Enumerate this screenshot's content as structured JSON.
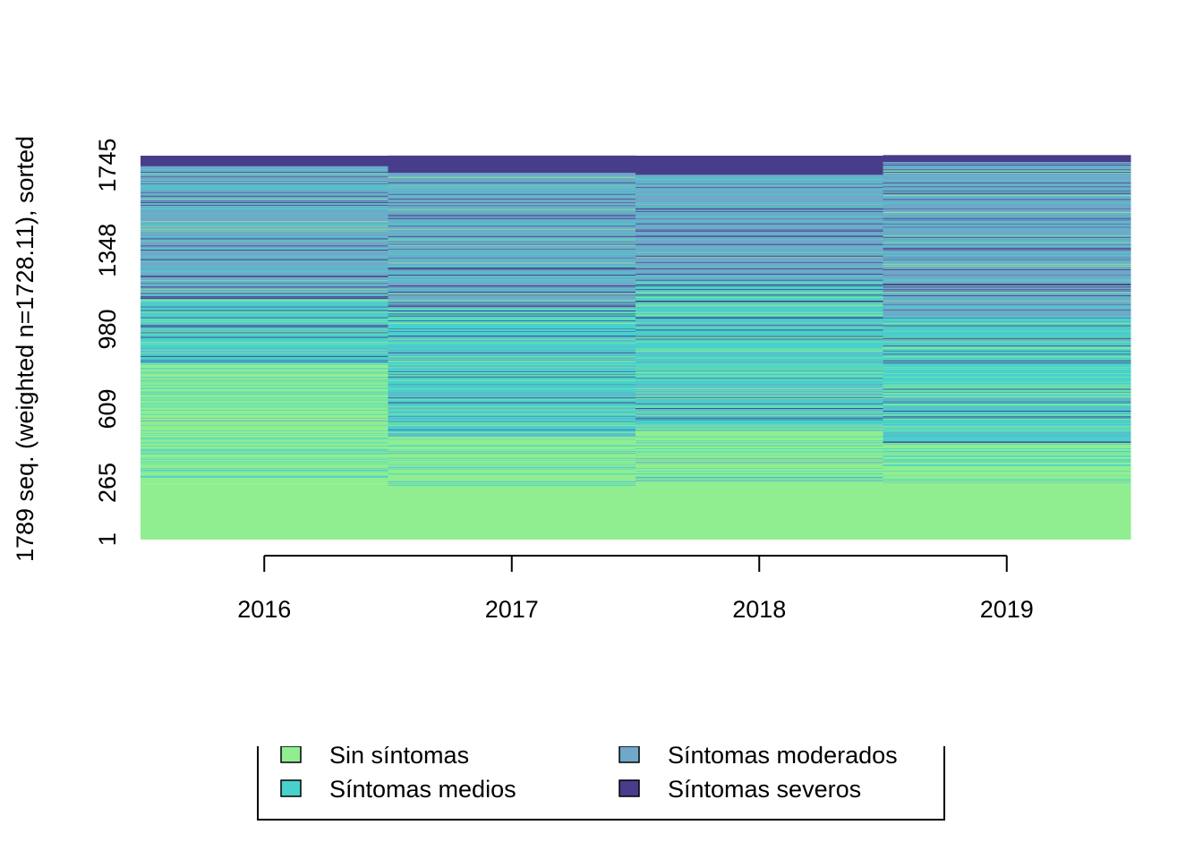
{
  "chart_data": {
    "type": "heatmap",
    "subtype": "sequence-index-plot",
    "ylabel": "1789 seq. (weighted n=1728.11), sorted",
    "xlabel": "",
    "categories": [
      "2016",
      "2017",
      "2018",
      "2019"
    ],
    "y_ticks": [
      "1",
      "265",
      "609",
      "980",
      "1348",
      "1745"
    ],
    "ylim": [
      0,
      1789
    ],
    "grid": false,
    "legend_position": "bottom",
    "states": [
      {
        "name": "Sin síntomas",
        "color": "#90EE90"
      },
      {
        "name": "Síntomas medios",
        "color": "#48D1CC"
      },
      {
        "name": "Síntomas moderados",
        "color": "#6FA8C8"
      },
      {
        "name": "Síntomas severos",
        "color": "#483D8B"
      }
    ],
    "columns": [
      {
        "year": "2016",
        "solid_sin_sintomas_to": 260,
        "mostly_sin_sintomas_to": 820,
        "mixed_medios_to": 1120,
        "moderados_severos_to": 1789,
        "severos_top_band": 1740
      },
      {
        "year": "2017",
        "solid_sin_sintomas_to": 250,
        "mostly_sin_sintomas_to": 480,
        "mixed_medios_to": 1080,
        "moderados_severos_to": 1789,
        "severos_top_band": 1710
      },
      {
        "year": "2018",
        "solid_sin_sintomas_to": 270,
        "mostly_sin_sintomas_to": 520,
        "mixed_medios_to": 1200,
        "moderados_severos_to": 1789,
        "severos_top_band": 1700
      },
      {
        "year": "2019",
        "solid_sin_sintomas_to": 255,
        "mostly_sin_sintomas_to": 450,
        "mixed_medios_to": 1030,
        "moderados_severos_to": 1789,
        "severos_top_band": 1760
      }
    ]
  }
}
